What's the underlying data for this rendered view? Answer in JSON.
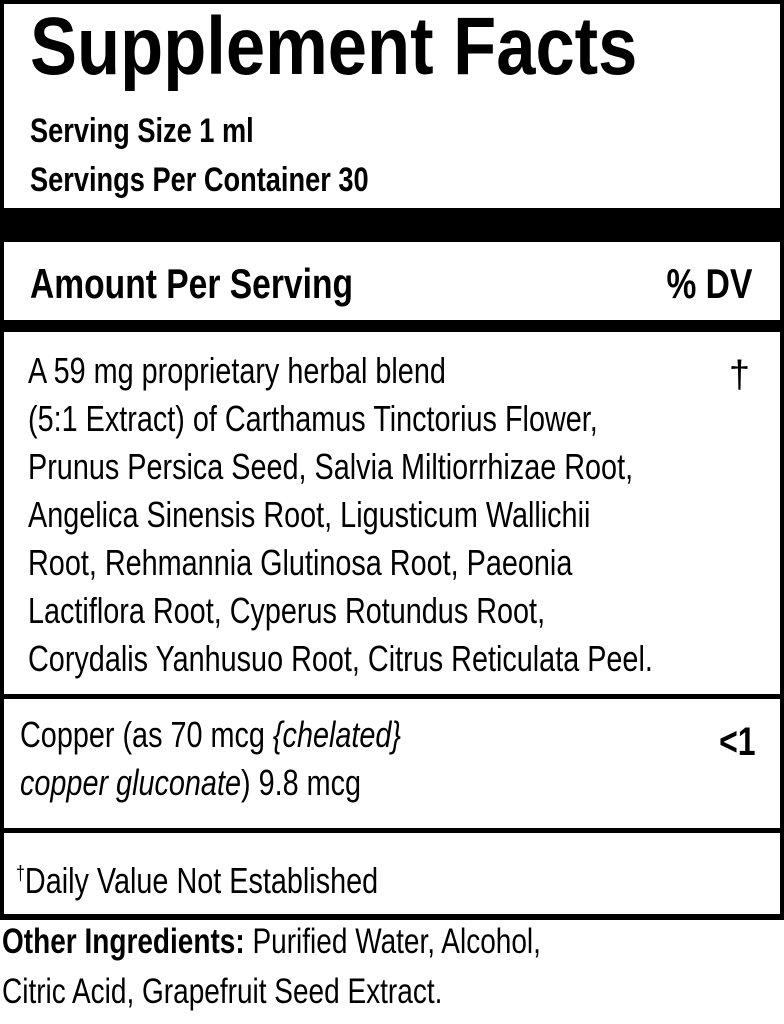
{
  "title": "Supplement Facts",
  "serving_size": "Serving Size 1 ml",
  "servings_per_container": "Servings Per Container 30",
  "header": {
    "amount": "Amount Per Serving",
    "dv": "% DV"
  },
  "blend": {
    "lines": [
      "A 59 mg proprietary herbal blend",
      "(5:1 Extract) of Carthamus Tinctorius Flower,",
      "Prunus Persica Seed, Salvia Miltiorrhizae Root,",
      "Angelica Sinensis Root, Ligusticum Wallichii",
      "Root, Rehmannia Glutinosa Root, Paeonia",
      "Lactiflora Root, Cyperus Rotundus Root,",
      "Corydalis Yanhusuo Root, Citrus Reticulata Peel."
    ],
    "dv": "†"
  },
  "copper": {
    "line1_a": "Copper (as 70 mcg ",
    "line1_b": "{chelated}",
    "line2_a": "copper gluconate",
    "line2_b": ") 9.8 mcg",
    "dv": "<1"
  },
  "footnote": {
    "mark": "†",
    "text": "Daily Value Not Established"
  },
  "other_ingredients": {
    "label": "Other Ingredients:",
    "line1": " Purified Water, Alcohol,",
    "line2": "Citric Acid, Grapefruit Seed Extract."
  }
}
